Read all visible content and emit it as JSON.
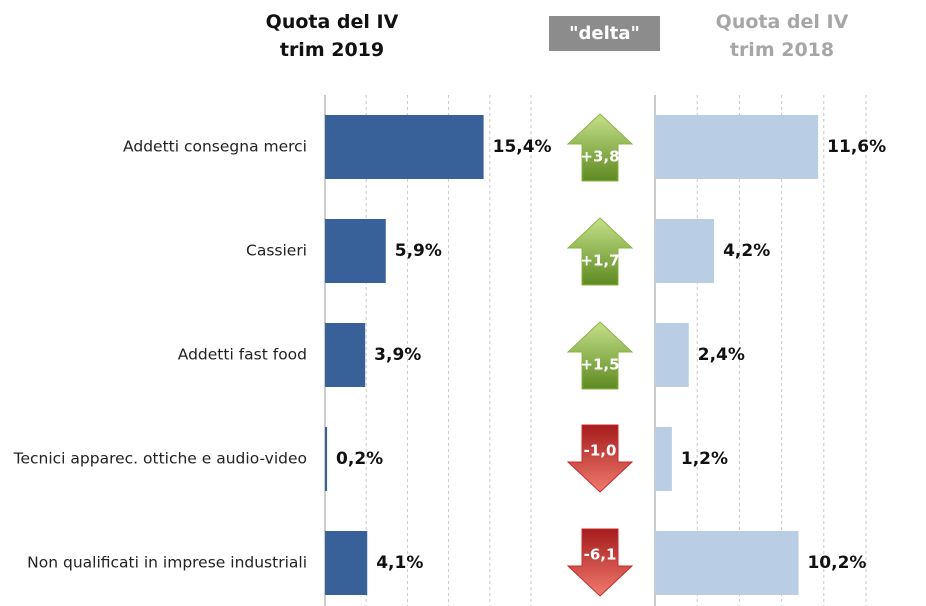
{
  "chart_data": [
    {
      "type": "bar",
      "orientation": "horizontal",
      "title": "Quota del IV trim 2019",
      "categories": [
        "Addetti consegna merci",
        "Cassieri",
        "Addetti fast food",
        "Tecnici apparec. ottiche e audio-video",
        "Non qualificati in imprese industriali"
      ],
      "values": [
        15.4,
        5.9,
        3.9,
        0.2,
        4.1
      ],
      "value_labels": [
        "15,4%",
        "5,9%",
        "3,9%",
        "0,2%",
        "4,1%"
      ],
      "color": "#38619a",
      "xlim": [
        0,
        20
      ],
      "xticks": [
        0,
        4,
        8,
        12,
        16,
        20
      ],
      "grid": true
    },
    {
      "type": "arrow",
      "title": "\"delta\"",
      "values": [
        3.8,
        1.7,
        1.5,
        -1.0,
        -6.1
      ],
      "value_labels": [
        "+3,8",
        "+1,7",
        "+1,5",
        "-1,0",
        "-6,1"
      ],
      "up_color": "#8ab43f",
      "down_color": "#c92b2b"
    },
    {
      "type": "bar",
      "orientation": "horizontal",
      "title": "Quota del IV trim 2018",
      "values": [
        11.6,
        4.2,
        2.4,
        1.2,
        10.2
      ],
      "value_labels": [
        "11,6%",
        "4,2%",
        "2,4%",
        "1,2%",
        "10,2%"
      ],
      "color": "#b9cde5",
      "xlim": [
        0,
        15
      ],
      "xticks": [
        0,
        3,
        6,
        9,
        12,
        15
      ],
      "grid": true
    }
  ]
}
